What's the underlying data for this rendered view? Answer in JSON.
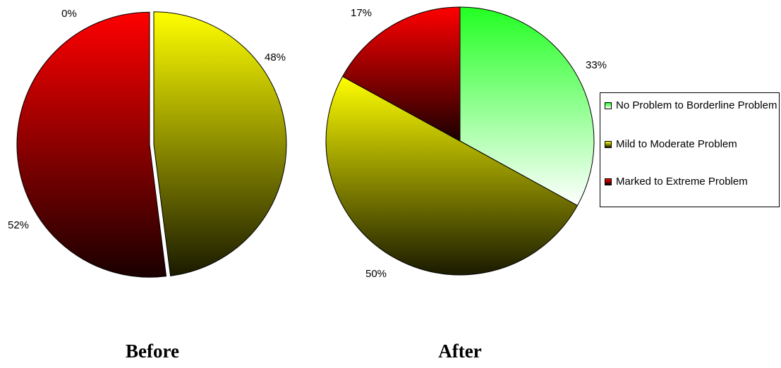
{
  "chart_data": [
    {
      "type": "pie",
      "title": "Before",
      "slices": [
        {
          "label": "No Problem to Borderline Problem",
          "value": 0,
          "display": "0%"
        },
        {
          "label": "Mild to Moderate Problem",
          "value": 48,
          "display": "48%"
        },
        {
          "label": "Marked to Extreme Problem",
          "value": 52,
          "display": "52%"
        }
      ]
    },
    {
      "type": "pie",
      "title": "After",
      "slices": [
        {
          "label": "No Problem to Borderline Problem",
          "value": 33,
          "display": "33%"
        },
        {
          "label": "Mild to Moderate Problem",
          "value": 50,
          "display": "50%"
        },
        {
          "label": "Marked to Extreme Problem",
          "value": 17,
          "display": "17%"
        }
      ]
    }
  ],
  "legend": {
    "placement": "right",
    "items": [
      {
        "label": "No Problem to Borderline Problem",
        "color_top": "#22ff22",
        "color_bottom": "#ffffff"
      },
      {
        "label": "Mild to Moderate Problem",
        "color_top": "#ffff00",
        "color_bottom": "#1a1a00"
      },
      {
        "label": "Marked to Extreme Problem",
        "color_top": "#ff0000",
        "color_bottom": "#1a0000"
      }
    ]
  }
}
